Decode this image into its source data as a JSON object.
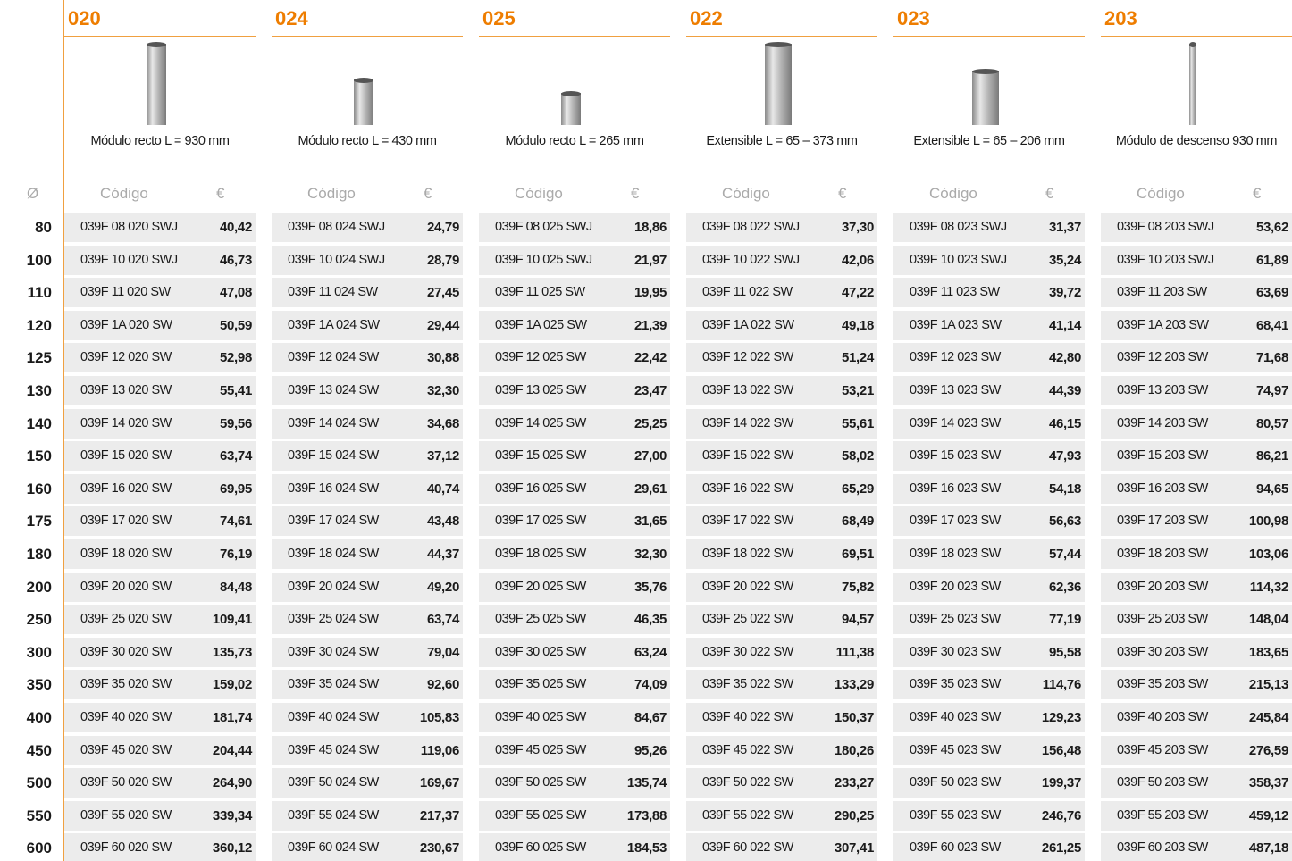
{
  "products": [
    {
      "code": "020",
      "description": "Módulo recto L = 930 mm"
    },
    {
      "code": "024",
      "description": "Módulo recto L = 430 mm"
    },
    {
      "code": "025",
      "description": "Módulo recto L = 265 mm"
    },
    {
      "code": "022",
      "description": "Extensible L = 65 – 373 mm"
    },
    {
      "code": "023",
      "description": "Extensible L = 65 – 206 mm"
    },
    {
      "code": "203",
      "description": "Módulo de descenso 930 mm"
    }
  ],
  "header": {
    "diameter": "Ø",
    "code": "Código",
    "price": "€"
  },
  "rows": [
    {
      "diameter": "80",
      "cells": [
        [
          "039F 08 020 SWJ",
          "40,42"
        ],
        [
          "039F 08 024 SWJ",
          "24,79"
        ],
        [
          "039F 08 025 SWJ",
          "18,86"
        ],
        [
          "039F 08 022 SWJ",
          "37,30"
        ],
        [
          "039F 08 023 SWJ",
          "31,37"
        ],
        [
          "039F 08 203 SWJ",
          "53,62"
        ]
      ]
    },
    {
      "diameter": "100",
      "cells": [
        [
          "039F 10 020 SWJ",
          "46,73"
        ],
        [
          "039F 10 024 SWJ",
          "28,79"
        ],
        [
          "039F 10 025 SWJ",
          "21,97"
        ],
        [
          "039F 10 022 SWJ",
          "42,06"
        ],
        [
          "039F 10 023 SWJ",
          "35,24"
        ],
        [
          "039F 10 203 SWJ",
          "61,89"
        ]
      ]
    },
    {
      "diameter": "110",
      "cells": [
        [
          "039F 11 020 SW",
          "47,08"
        ],
        [
          "039F 11 024 SW",
          "27,45"
        ],
        [
          "039F 11 025 SW",
          "19,95"
        ],
        [
          "039F 11 022 SW",
          "47,22"
        ],
        [
          "039F 11 023 SW",
          "39,72"
        ],
        [
          "039F 11 203 SW",
          "63,69"
        ]
      ]
    },
    {
      "diameter": "120",
      "cells": [
        [
          "039F 1A 020 SW",
          "50,59"
        ],
        [
          "039F 1A 024 SW",
          "29,44"
        ],
        [
          "039F 1A 025 SW",
          "21,39"
        ],
        [
          "039F 1A 022 SW",
          "49,18"
        ],
        [
          "039F 1A 023 SW",
          "41,14"
        ],
        [
          "039F 1A 203 SW",
          "68,41"
        ]
      ]
    },
    {
      "diameter": "125",
      "cells": [
        [
          "039F 12 020 SW",
          "52,98"
        ],
        [
          "039F 12 024 SW",
          "30,88"
        ],
        [
          "039F 12 025 SW",
          "22,42"
        ],
        [
          "039F 12 022 SW",
          "51,24"
        ],
        [
          "039F 12 023 SW",
          "42,80"
        ],
        [
          "039F 12 203 SW",
          "71,68"
        ]
      ]
    },
    {
      "diameter": "130",
      "cells": [
        [
          "039F 13 020 SW",
          "55,41"
        ],
        [
          "039F 13 024 SW",
          "32,30"
        ],
        [
          "039F 13 025 SW",
          "23,47"
        ],
        [
          "039F 13 022 SW",
          "53,21"
        ],
        [
          "039F 13 023 SW",
          "44,39"
        ],
        [
          "039F 13 203 SW",
          "74,97"
        ]
      ]
    },
    {
      "diameter": "140",
      "cells": [
        [
          "039F 14 020 SW",
          "59,56"
        ],
        [
          "039F 14 024 SW",
          "34,68"
        ],
        [
          "039F 14 025 SW",
          "25,25"
        ],
        [
          "039F 14 022 SW",
          "55,61"
        ],
        [
          "039F 14 023 SW",
          "46,15"
        ],
        [
          "039F 14 203 SW",
          "80,57"
        ]
      ]
    },
    {
      "diameter": "150",
      "cells": [
        [
          "039F 15 020 SW",
          "63,74"
        ],
        [
          "039F 15 024 SW",
          "37,12"
        ],
        [
          "039F 15 025 SW",
          "27,00"
        ],
        [
          "039F 15 022 SW",
          "58,02"
        ],
        [
          "039F 15 023 SW",
          "47,93"
        ],
        [
          "039F 15 203 SW",
          "86,21"
        ]
      ]
    },
    {
      "diameter": "160",
      "cells": [
        [
          "039F 16 020 SW",
          "69,95"
        ],
        [
          "039F 16 024 SW",
          "40,74"
        ],
        [
          "039F 16 025 SW",
          "29,61"
        ],
        [
          "039F 16 022 SW",
          "65,29"
        ],
        [
          "039F 16 023 SW",
          "54,18"
        ],
        [
          "039F 16 203 SW",
          "94,65"
        ]
      ]
    },
    {
      "diameter": "175",
      "cells": [
        [
          "039F 17 020 SW",
          "74,61"
        ],
        [
          "039F 17 024 SW",
          "43,48"
        ],
        [
          "039F 17 025 SW",
          "31,65"
        ],
        [
          "039F 17 022 SW",
          "68,49"
        ],
        [
          "039F 17 023 SW",
          "56,63"
        ],
        [
          "039F 17 203 SW",
          "100,98"
        ]
      ]
    },
    {
      "diameter": "180",
      "cells": [
        [
          "039F 18 020 SW",
          "76,19"
        ],
        [
          "039F 18 024 SW",
          "44,37"
        ],
        [
          "039F 18 025 SW",
          "32,30"
        ],
        [
          "039F 18 022 SW",
          "69,51"
        ],
        [
          "039F 18 023 SW",
          "57,44"
        ],
        [
          "039F 18 203 SW",
          "103,06"
        ]
      ]
    },
    {
      "diameter": "200",
      "cells": [
        [
          "039F 20 020 SW",
          "84,48"
        ],
        [
          "039F 20 024 SW",
          "49,20"
        ],
        [
          "039F 20 025 SW",
          "35,76"
        ],
        [
          "039F 20 022 SW",
          "75,82"
        ],
        [
          "039F 20 023 SW",
          "62,36"
        ],
        [
          "039F 20 203 SW",
          "114,32"
        ]
      ]
    },
    {
      "diameter": "250",
      "cells": [
        [
          "039F 25 020 SW",
          "109,41"
        ],
        [
          "039F 25 024 SW",
          "63,74"
        ],
        [
          "039F 25 025 SW",
          "46,35"
        ],
        [
          "039F 25 022 SW",
          "94,57"
        ],
        [
          "039F 25 023 SW",
          "77,19"
        ],
        [
          "039F 25 203 SW",
          "148,04"
        ]
      ]
    },
    {
      "diameter": "300",
      "cells": [
        [
          "039F 30 020 SW",
          "135,73"
        ],
        [
          "039F 30 024 SW",
          "79,04"
        ],
        [
          "039F 30 025 SW",
          "63,24"
        ],
        [
          "039F 30 022 SW",
          "111,38"
        ],
        [
          "039F 30 023 SW",
          "95,58"
        ],
        [
          "039F 30 203 SW",
          "183,65"
        ]
      ]
    },
    {
      "diameter": "350",
      "cells": [
        [
          "039F 35 020 SW",
          "159,02"
        ],
        [
          "039F 35 024 SW",
          "92,60"
        ],
        [
          "039F 35 025 SW",
          "74,09"
        ],
        [
          "039F 35 022 SW",
          "133,29"
        ],
        [
          "039F 35 023 SW",
          "114,76"
        ],
        [
          "039F 35 203 SW",
          "215,13"
        ]
      ]
    },
    {
      "diameter": "400",
      "cells": [
        [
          "039F 40 020 SW",
          "181,74"
        ],
        [
          "039F 40 024 SW",
          "105,83"
        ],
        [
          "039F 40 025 SW",
          "84,67"
        ],
        [
          "039F 40 022 SW",
          "150,37"
        ],
        [
          "039F 40 023 SW",
          "129,23"
        ],
        [
          "039F 40 203 SW",
          "245,84"
        ]
      ]
    },
    {
      "diameter": "450",
      "cells": [
        [
          "039F 45 020 SW",
          "204,44"
        ],
        [
          "039F 45 024 SW",
          "119,06"
        ],
        [
          "039F 45 025 SW",
          "95,26"
        ],
        [
          "039F 45 022 SW",
          "180,26"
        ],
        [
          "039F 45 023 SW",
          "156,48"
        ],
        [
          "039F 45 203 SW",
          "276,59"
        ]
      ]
    },
    {
      "diameter": "500",
      "cells": [
        [
          "039F 50 020 SW",
          "264,90"
        ],
        [
          "039F 50 024 SW",
          "169,67"
        ],
        [
          "039F 50 025 SW",
          "135,74"
        ],
        [
          "039F 50 022 SW",
          "233,27"
        ],
        [
          "039F 50 023 SW",
          "199,37"
        ],
        [
          "039F 50 203 SW",
          "358,37"
        ]
      ]
    },
    {
      "diameter": "550",
      "cells": [
        [
          "039F 55 020 SW",
          "339,34"
        ],
        [
          "039F 55 024 SW",
          "217,37"
        ],
        [
          "039F 55 025 SW",
          "173,88"
        ],
        [
          "039F 55 022 SW",
          "290,25"
        ],
        [
          "039F 55 023 SW",
          "246,76"
        ],
        [
          "039F 55 203 SW",
          "459,12"
        ]
      ]
    },
    {
      "diameter": "600",
      "cells": [
        [
          "039F 60 020 SW",
          "360,12"
        ],
        [
          "039F 60 024 SW",
          "230,67"
        ],
        [
          "039F 60 025 SW",
          "184,53"
        ],
        [
          "039F 60 022 SW",
          "307,41"
        ],
        [
          "039F 60 023 SW",
          "261,25"
        ],
        [
          "039F 60 203 SW",
          "487,18"
        ]
      ]
    }
  ]
}
